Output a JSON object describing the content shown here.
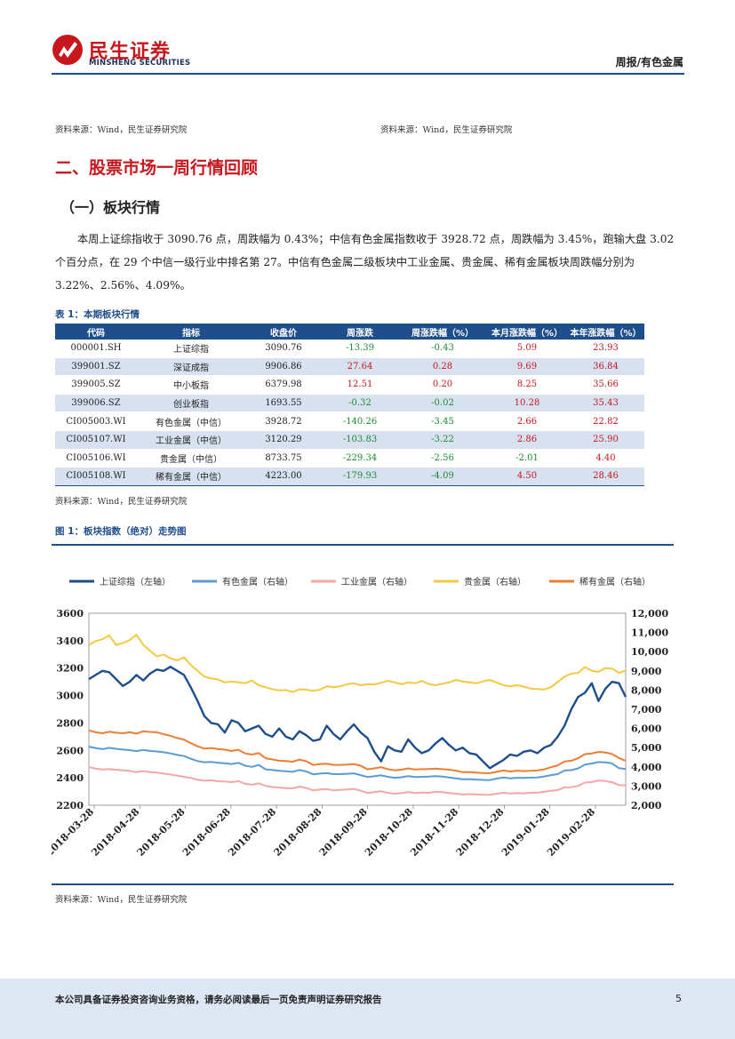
{
  "header": {
    "logo_cn": "民生证券",
    "logo_en": "MINSHENG SECURITIES",
    "report_type": "周报/有色金属"
  },
  "top_sources": {
    "left": "资料来源：Wind，民生证券研究院",
    "right": "资料来源：Wind，民生证券研究院"
  },
  "section": {
    "title": "二、股票市场一周行情回顾",
    "subtitle": "（一）板块行情",
    "paragraph": "本周上证综指收于 3090.76 点，周跌幅为 0.43%；中信有色金属指数收于 3928.72 点，周跌幅为 3.45%，跑输大盘 3.02 个百分点，在 29 个中信一级行业中排名第 27。中信有色金属二级板块中工业金属、贵金属、稀有金属板块周跌幅分别为 3.22%、2.56%、4.09%。"
  },
  "table": {
    "caption": "表 1：本期板块行情",
    "headers": [
      "代码",
      "指标",
      "收盘价",
      "周涨跌",
      "周涨跌幅（%）",
      "本月涨跌幅（%）",
      "本年涨跌幅（%）"
    ],
    "rows": [
      [
        "000001.SH",
        "上证综指",
        "3090.76",
        "-13.39",
        "-0.43",
        "5.09",
        "23.93"
      ],
      [
        "399001.SZ",
        "深证成指",
        "9906.86",
        "27.64",
        "0.28",
        "9.69",
        "36.84"
      ],
      [
        "399005.SZ",
        "中小板指",
        "6379.98",
        "12.51",
        "0.20",
        "8.25",
        "35.66"
      ],
      [
        "399006.SZ",
        "创业板指",
        "1693.55",
        "-0.32",
        "-0.02",
        "10.28",
        "35.43"
      ],
      [
        "CI005003.WI",
        "有色金属（中信）",
        "3928.72",
        "-140.26",
        "-3.45",
        "2.66",
        "22.82"
      ],
      [
        "CI005107.WI",
        "工业金属（中信）",
        "3120.29",
        "-103.83",
        "-3.22",
        "2.86",
        "25.90"
      ],
      [
        "CI005106.WI",
        "贵金属（中信）",
        "8733.75",
        "-229.34",
        "-2.56",
        "-2.01",
        "4.40"
      ],
      [
        "CI005108.WI",
        "稀有金属（中信）",
        "4223.00",
        "-179.93",
        "-4.09",
        "4.50",
        "28.46"
      ]
    ],
    "source": "资料来源：Wind，民生证券研究院"
  },
  "figure": {
    "caption": "图 1：板块指数（绝对）走势图",
    "source": "资料来源：Wind，民生证券研究院"
  },
  "chart_data": {
    "type": "line",
    "title": "",
    "x_ticks": [
      "2018-03-28",
      "2018-04-28",
      "2018-05-28",
      "2018-06-28",
      "2018-07-28",
      "2018-08-28",
      "2018-09-28",
      "2018-10-28",
      "2018-11-28",
      "2018-12-28",
      "2019-01-28",
      "2019-02-28"
    ],
    "left_axis": {
      "ticks": [
        "3600",
        "3400",
        "3200",
        "3000",
        "2800",
        "2600",
        "2400",
        "2200"
      ],
      "ylim": [
        2200,
        3600
      ]
    },
    "right_axis": {
      "ticks": [
        "12,000",
        "11,000",
        "10,000",
        "9,000",
        "8,000",
        "7,000",
        "6,000",
        "5,000",
        "4,000",
        "3,000",
        "2,000"
      ],
      "ylim": [
        2000,
        12000
      ]
    },
    "legend_position": "top",
    "series": [
      {
        "name": "上证综指（左轴）",
        "axis": "left",
        "color": "#1f4e8c",
        "values": [
          3120,
          3150,
          3180,
          3170,
          3120,
          3070,
          3100,
          3150,
          3110,
          3160,
          3190,
          3180,
          3210,
          3180,
          3150,
          3060,
          2960,
          2850,
          2800,
          2790,
          2730,
          2820,
          2800,
          2740,
          2760,
          2780,
          2720,
          2700,
          2760,
          2700,
          2680,
          2740,
          2710,
          2670,
          2680,
          2780,
          2720,
          2680,
          2740,
          2790,
          2730,
          2690,
          2590,
          2520,
          2630,
          2600,
          2590,
          2680,
          2620,
          2580,
          2600,
          2650,
          2690,
          2640,
          2600,
          2620,
          2580,
          2570,
          2520,
          2470,
          2500,
          2530,
          2570,
          2560,
          2590,
          2600,
          2580,
          2620,
          2640,
          2700,
          2780,
          2900,
          2990,
          3020,
          3090,
          2960,
          3050,
          3100,
          3090,
          2990
        ]
      },
      {
        "name": "有色金属（右轴）",
        "axis": "right",
        "color": "#5b9bd5",
        "values": [
          5050,
          4980,
          4920,
          4990,
          4940,
          4900,
          4870,
          4820,
          4880,
          4830,
          4800,
          4760,
          4700,
          4620,
          4560,
          4420,
          4300,
          4240,
          4260,
          4210,
          4190,
          4150,
          4210,
          4060,
          4000,
          4100,
          3870,
          3840,
          3790,
          3770,
          3740,
          3840,
          3760,
          3610,
          3650,
          3670,
          3620,
          3620,
          3640,
          3660,
          3570,
          3470,
          3510,
          3560,
          3480,
          3430,
          3460,
          3520,
          3470,
          3480,
          3490,
          3520,
          3490,
          3450,
          3400,
          3350,
          3360,
          3340,
          3320,
          3310,
          3390,
          3450,
          3400,
          3430,
          3420,
          3440,
          3450,
          3500,
          3570,
          3620,
          3810,
          3830,
          3920,
          4120,
          4170,
          4250,
          4230,
          4180,
          3930,
          3890
        ]
      },
      {
        "name": "工业金属（右轴）",
        "axis": "right",
        "color": "#f4a6a6",
        "values": [
          3980,
          3910,
          3860,
          3880,
          3850,
          3820,
          3790,
          3720,
          3780,
          3730,
          3700,
          3650,
          3600,
          3540,
          3480,
          3420,
          3330,
          3280,
          3300,
          3250,
          3240,
          3200,
          3260,
          3120,
          3070,
          3140,
          3010,
          2950,
          2920,
          2890,
          2880,
          2970,
          2900,
          2780,
          2820,
          2840,
          2780,
          2800,
          2820,
          2850,
          2760,
          2640,
          2680,
          2730,
          2650,
          2600,
          2630,
          2690,
          2640,
          2660,
          2650,
          2700,
          2680,
          2640,
          2600,
          2560,
          2580,
          2570,
          2550,
          2540,
          2600,
          2650,
          2610,
          2640,
          2620,
          2650,
          2660,
          2700,
          2750,
          2790,
          2930,
          2940,
          3010,
          3180,
          3210,
          3290,
          3260,
          3200,
          3050,
          3030
        ]
      },
      {
        "name": "贵金属（右轴）",
        "axis": "right",
        "color": "#f5c842",
        "values": [
          10350,
          10550,
          10650,
          10850,
          10350,
          10450,
          10600,
          10880,
          10350,
          10050,
          9750,
          9850,
          9650,
          9550,
          9700,
          9300,
          9000,
          8700,
          8600,
          8550,
          8400,
          8450,
          8400,
          8350,
          8500,
          8250,
          8150,
          8050,
          7980,
          8000,
          7900,
          8040,
          8020,
          7960,
          8020,
          8200,
          8150,
          8200,
          8300,
          8350,
          8250,
          8300,
          8290,
          8380,
          8480,
          8400,
          8300,
          8400,
          8350,
          8480,
          8320,
          8250,
          8330,
          8400,
          8530,
          8450,
          8400,
          8350,
          8450,
          8530,
          8400,
          8250,
          8200,
          8250,
          8180,
          8080,
          8050,
          8030,
          8150,
          8420,
          8700,
          8850,
          8900,
          9200,
          9000,
          8950,
          9150,
          9120,
          8900,
          9020
        ]
      },
      {
        "name": "稀有金属（右轴）",
        "axis": "right",
        "color": "#ed7d31",
        "values": [
          5900,
          5800,
          5750,
          5830,
          5780,
          5750,
          5800,
          5730,
          5850,
          5820,
          5800,
          5700,
          5620,
          5500,
          5420,
          5230,
          5070,
          4950,
          4980,
          4920,
          4900,
          4830,
          4890,
          4700,
          4640,
          4720,
          4450,
          4390,
          4320,
          4300,
          4270,
          4380,
          4290,
          4100,
          4140,
          4160,
          4100,
          4100,
          4120,
          4150,
          4060,
          3870,
          3920,
          3980,
          3880,
          3820,
          3850,
          3920,
          3860,
          3880,
          3890,
          3910,
          3880,
          3850,
          3800,
          3720,
          3730,
          3700,
          3680,
          3670,
          3740,
          3810,
          3760,
          3800,
          3780,
          3790,
          3810,
          3870,
          3980,
          4080,
          4280,
          4320,
          4450,
          4660,
          4700,
          4780,
          4750,
          4670,
          4460,
          4320
        ]
      }
    ]
  }
}
